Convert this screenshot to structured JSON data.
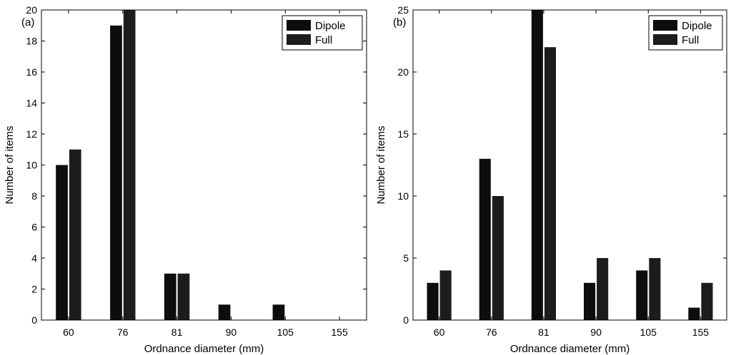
{
  "chart_data": [
    {
      "type": "bar",
      "panel_label": "(a)",
      "categories": [
        "60",
        "76",
        "81",
        "90",
        "105",
        "155"
      ],
      "series": [
        {
          "name": "Dipole",
          "values": [
            10,
            19,
            3,
            1,
            1,
            0
          ]
        },
        {
          "name": "Full",
          "values": [
            11,
            20,
            3,
            0,
            0,
            0
          ]
        }
      ],
      "xlabel": "Ordnance diameter (mm)",
      "ylabel": "Number of items",
      "ylim": [
        0,
        20
      ],
      "yticks": [
        "0",
        "2",
        "4",
        "6",
        "8",
        "10",
        "12",
        "14",
        "16",
        "18",
        "20"
      ],
      "legend_position": "top-right",
      "grid": false
    },
    {
      "type": "bar",
      "panel_label": "(b)",
      "categories": [
        "60",
        "76",
        "81",
        "90",
        "105",
        "155"
      ],
      "series": [
        {
          "name": "Dipole",
          "values": [
            3,
            13,
            25,
            3,
            4,
            1
          ]
        },
        {
          "name": "Full",
          "values": [
            4,
            10,
            22,
            5,
            5,
            3
          ]
        }
      ],
      "xlabel": "Ordnance diameter (mm)",
      "ylabel": "Number of items",
      "ylim": [
        0,
        25
      ],
      "yticks": [
        "0",
        "5",
        "10",
        "15",
        "20",
        "25"
      ],
      "legend_position": "top-right",
      "grid": false
    }
  ],
  "colors": {
    "dipole": "#0d0d0d",
    "full": "#1c1c1c",
    "axis": "#000000"
  }
}
